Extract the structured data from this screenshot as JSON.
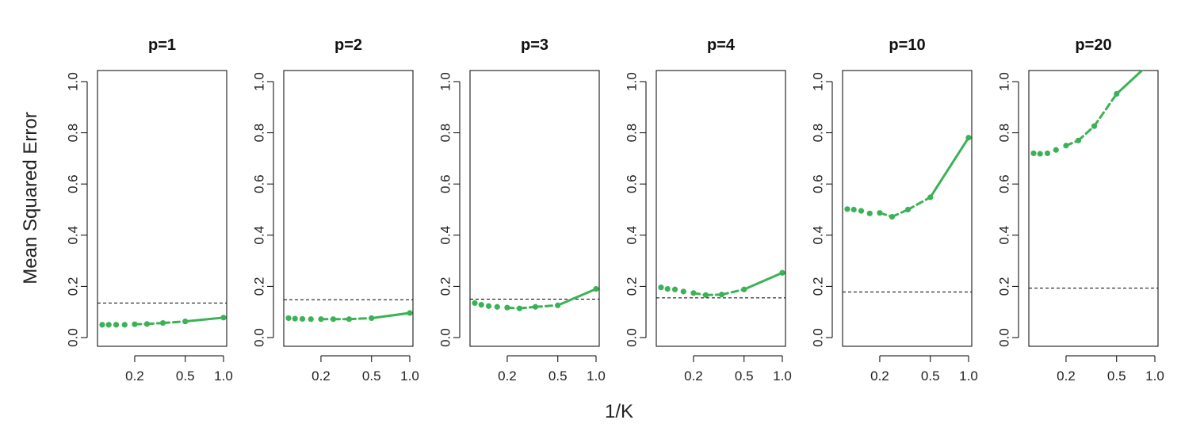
{
  "chart_data": {
    "type": "line",
    "xlabel": "1/K",
    "ylabel": "Mean Squared Error",
    "x_scale": "log",
    "x_ticks": [
      0.2,
      0.5,
      1.0
    ],
    "x_tick_labels": [
      "0.2",
      "0.5",
      "1.0"
    ],
    "y_ticks": [
      0.0,
      0.2,
      0.4,
      0.6,
      0.8,
      1.0
    ],
    "y_tick_labels": [
      "0.0",
      "0.2",
      "0.4",
      "0.6",
      "0.8",
      "1.0"
    ],
    "ylim": [
      0,
      1.0
    ],
    "series_color": "#3cb257",
    "reference_color": "#000000",
    "x": [
      0.1111,
      0.125,
      0.1429,
      0.1667,
      0.2,
      0.25,
      0.3333,
      0.5,
      1.0
    ],
    "panels": [
      {
        "title": "p=1",
        "reference_mse": 0.135,
        "values": [
          0.05,
          0.05,
          0.05,
          0.05,
          0.052,
          0.053,
          0.057,
          0.063,
          0.078
        ]
      },
      {
        "title": "p=2",
        "reference_mse": 0.148,
        "values": [
          0.076,
          0.074,
          0.073,
          0.072,
          0.072,
          0.072,
          0.072,
          0.076,
          0.096
        ]
      },
      {
        "title": "p=3",
        "reference_mse": 0.15,
        "values": [
          0.135,
          0.128,
          0.123,
          0.12,
          0.117,
          0.114,
          0.12,
          0.126,
          0.19
        ]
      },
      {
        "title": "p=4",
        "reference_mse": 0.155,
        "values": [
          0.196,
          0.19,
          0.188,
          0.18,
          0.174,
          0.166,
          0.168,
          0.188,
          0.253
        ]
      },
      {
        "title": "p=10",
        "reference_mse": 0.178,
        "values": [
          0.502,
          0.5,
          0.495,
          0.485,
          0.487,
          0.472,
          0.5,
          0.548,
          0.781
        ]
      },
      {
        "title": "p=20",
        "reference_mse": 0.193,
        "values": [
          0.72,
          0.718,
          0.72,
          0.733,
          0.75,
          0.77,
          0.826,
          0.952,
          1.09
        ]
      }
    ]
  }
}
